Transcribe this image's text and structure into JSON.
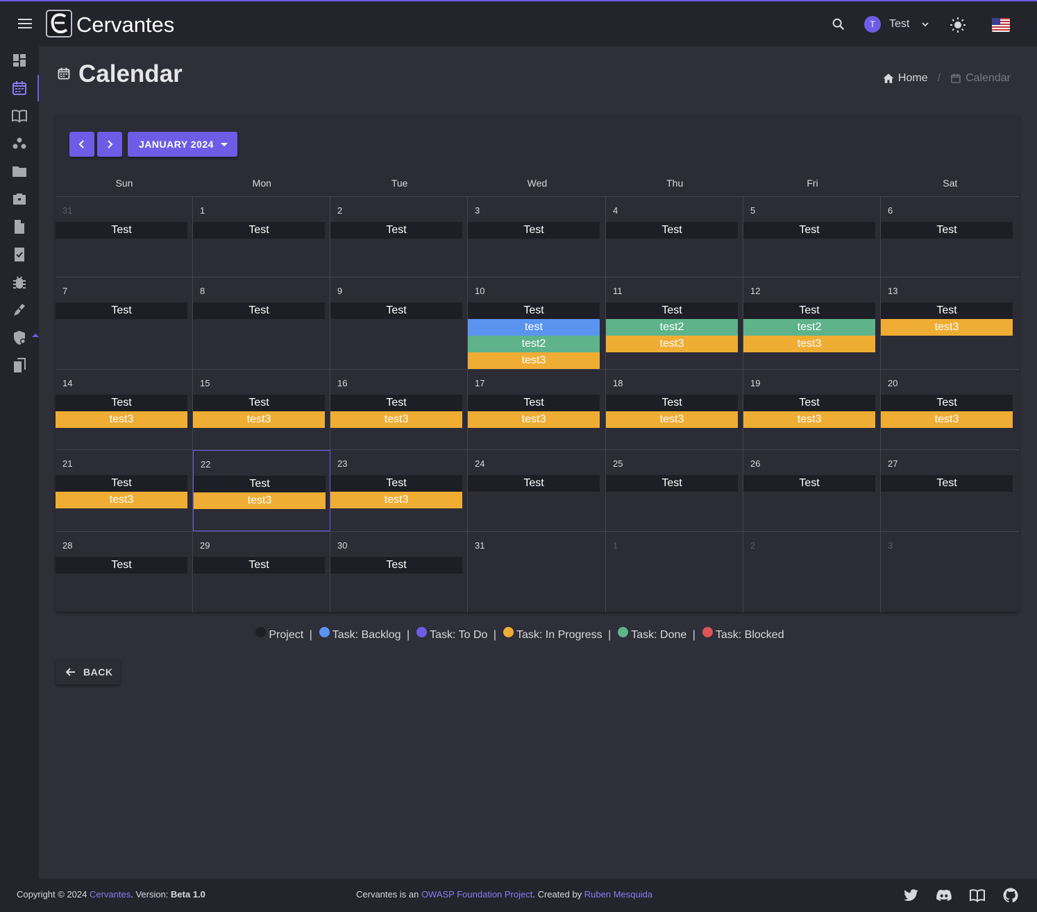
{
  "app": {
    "name": "Cervantes",
    "user": {
      "initial": "T",
      "name": "Test"
    }
  },
  "page": {
    "title": "Calendar",
    "breadcrumb": {
      "home": "Home",
      "current": "Calendar"
    }
  },
  "calendar": {
    "month_label": "JANUARY 2024",
    "days_of_week": [
      "Sun",
      "Mon",
      "Tue",
      "Wed",
      "Thu",
      "Fri",
      "Sat"
    ],
    "weeks": [
      [
        {
          "num": "31",
          "other": true,
          "events": [
            {
              "label": "Test",
              "type": "project"
            }
          ]
        },
        {
          "num": "1",
          "events": [
            {
              "label": "Test",
              "type": "project"
            }
          ]
        },
        {
          "num": "2",
          "events": [
            {
              "label": "Test",
              "type": "project"
            }
          ]
        },
        {
          "num": "3",
          "events": [
            {
              "label": "Test",
              "type": "project"
            }
          ]
        },
        {
          "num": "4",
          "events": [
            {
              "label": "Test",
              "type": "project"
            }
          ]
        },
        {
          "num": "5",
          "events": [
            {
              "label": "Test",
              "type": "project"
            }
          ]
        },
        {
          "num": "6",
          "events": [
            {
              "label": "Test",
              "type": "project"
            }
          ]
        }
      ],
      [
        {
          "num": "7",
          "events": [
            {
              "label": "Test",
              "type": "project"
            }
          ]
        },
        {
          "num": "8",
          "events": [
            {
              "label": "Test",
              "type": "project"
            }
          ]
        },
        {
          "num": "9",
          "events": [
            {
              "label": "Test",
              "type": "project"
            }
          ]
        },
        {
          "num": "10",
          "events": [
            {
              "label": "Test",
              "type": "project"
            },
            {
              "label": "test",
              "type": "backlog"
            },
            {
              "label": "test2",
              "type": "done"
            },
            {
              "label": "test3",
              "type": "progress"
            }
          ]
        },
        {
          "num": "11",
          "events": [
            {
              "label": "Test",
              "type": "project"
            },
            {
              "label": "test2",
              "type": "done"
            },
            {
              "label": "test3",
              "type": "progress"
            }
          ]
        },
        {
          "num": "12",
          "events": [
            {
              "label": "Test",
              "type": "project"
            },
            {
              "label": "test2",
              "type": "done"
            },
            {
              "label": "test3",
              "type": "progress"
            }
          ]
        },
        {
          "num": "13",
          "events": [
            {
              "label": "Test",
              "type": "project"
            },
            {
              "label": "test3",
              "type": "progress"
            }
          ]
        }
      ],
      [
        {
          "num": "14",
          "events": [
            {
              "label": "Test",
              "type": "project"
            },
            {
              "label": "test3",
              "type": "progress"
            }
          ]
        },
        {
          "num": "15",
          "events": [
            {
              "label": "Test",
              "type": "project"
            },
            {
              "label": "test3",
              "type": "progress"
            }
          ]
        },
        {
          "num": "16",
          "events": [
            {
              "label": "Test",
              "type": "project"
            },
            {
              "label": "test3",
              "type": "progress"
            }
          ]
        },
        {
          "num": "17",
          "events": [
            {
              "label": "Test",
              "type": "project"
            },
            {
              "label": "test3",
              "type": "progress"
            }
          ]
        },
        {
          "num": "18",
          "events": [
            {
              "label": "Test",
              "type": "project"
            },
            {
              "label": "test3",
              "type": "progress"
            }
          ]
        },
        {
          "num": "19",
          "events": [
            {
              "label": "Test",
              "type": "project"
            },
            {
              "label": "test3",
              "type": "progress"
            }
          ]
        },
        {
          "num": "20",
          "events": [
            {
              "label": "Test",
              "type": "project"
            },
            {
              "label": "test3",
              "type": "progress"
            }
          ]
        }
      ],
      [
        {
          "num": "21",
          "events": [
            {
              "label": "Test",
              "type": "project"
            },
            {
              "label": "test3",
              "type": "progress"
            }
          ]
        },
        {
          "num": "22",
          "today": true,
          "events": [
            {
              "label": "Test",
              "type": "project"
            },
            {
              "label": "test3",
              "type": "progress"
            }
          ]
        },
        {
          "num": "23",
          "events": [
            {
              "label": "Test",
              "type": "project"
            },
            {
              "label": "test3",
              "type": "progress"
            }
          ]
        },
        {
          "num": "24",
          "events": [
            {
              "label": "Test",
              "type": "project"
            }
          ]
        },
        {
          "num": "25",
          "events": [
            {
              "label": "Test",
              "type": "project"
            }
          ]
        },
        {
          "num": "26",
          "events": [
            {
              "label": "Test",
              "type": "project"
            }
          ]
        },
        {
          "num": "27",
          "events": [
            {
              "label": "Test",
              "type": "project"
            }
          ]
        }
      ],
      [
        {
          "num": "28",
          "events": [
            {
              "label": "Test",
              "type": "project"
            }
          ]
        },
        {
          "num": "29",
          "events": [
            {
              "label": "Test",
              "type": "project"
            }
          ]
        },
        {
          "num": "30",
          "events": [
            {
              "label": "Test",
              "type": "project"
            }
          ]
        },
        {
          "num": "31",
          "events": []
        },
        {
          "num": "1",
          "other": true,
          "events": []
        },
        {
          "num": "2",
          "other": true,
          "events": []
        },
        {
          "num": "3",
          "other": true,
          "events": []
        }
      ]
    ]
  },
  "legend": [
    {
      "label": "Project",
      "color": "#1e1e26"
    },
    {
      "label": "Task: Backlog",
      "color": "#5b94f0"
    },
    {
      "label": "Task: To Do",
      "color": "#6f5ce6"
    },
    {
      "label": "Task: In Progress",
      "color": "#efad34"
    },
    {
      "label": "Task: Done",
      "color": "#5eb38a"
    },
    {
      "label": "Task: Blocked",
      "color": "#e0535a"
    }
  ],
  "back_label": "BACK",
  "footer": {
    "copyright": "Copyright © 2024 ",
    "brand": "Cervantes",
    "version_prefix": ". Version: ",
    "version": "Beta 1.0",
    "center_prefix": "Cervantes is an ",
    "owasp": "OWASP Foundation Project",
    "created_by": ". Created by ",
    "author": "Ruben Mesquida"
  },
  "colors": {
    "accent": "#6f5ce6",
    "project": "#1e1e26",
    "backlog": "#5b94f0",
    "in_progress": "#efad34",
    "done": "#5eb38a",
    "blocked": "#e0535a"
  },
  "icons": {
    "sidebar": [
      "dashboard-icon",
      "calendar-icon",
      "book-icon",
      "clients-icon",
      "folder-icon",
      "briefcase-icon",
      "document-icon",
      "checklist-icon",
      "bug-icon",
      "vault-icon",
      "security-icon",
      "copy-icon"
    ],
    "footer": [
      "twitter-icon",
      "discord-icon",
      "docs-icon",
      "github-icon"
    ]
  }
}
